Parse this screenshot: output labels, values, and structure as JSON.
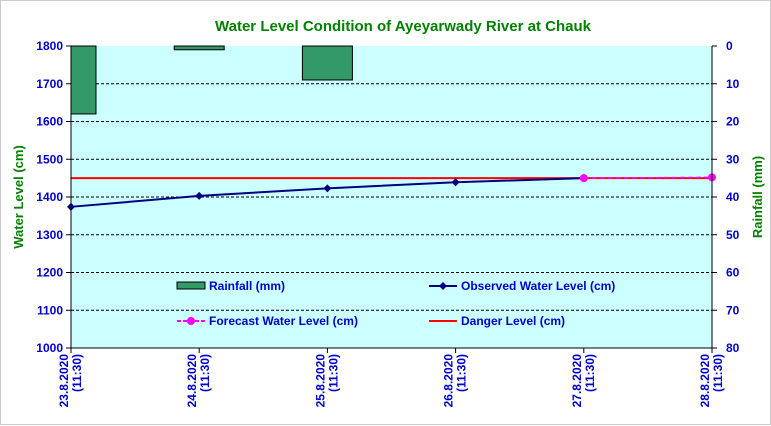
{
  "chart_data": {
    "type": "bar+line",
    "title": "Water Level Condition of Ayeyarwady River at Chauk",
    "ylabel": "Water Level (cm)",
    "y2label": "Rainfall (mm)",
    "ylim": [
      1000,
      1800
    ],
    "y2lim": [
      0,
      80
    ],
    "y2_inverted": true,
    "yticks": [
      1000,
      1100,
      1200,
      1300,
      1400,
      1500,
      1600,
      1700,
      1800
    ],
    "y2ticks": [
      0,
      10,
      20,
      30,
      40,
      50,
      60,
      70,
      80
    ],
    "categories": [
      "23.8.2020 (11:30)",
      "24.8.2020 (11:30)",
      "25.8.2020 (11:30)",
      "26.8.2020 (11:30)",
      "27.8.2020 (11:30)",
      "28.8.2020 (11:30)"
    ],
    "grid": true,
    "series": [
      {
        "name": "Rainfall (mm)",
        "type": "bar",
        "axis": "right",
        "color": "#339966",
        "values": [
          18,
          1,
          9,
          null,
          null,
          null
        ]
      },
      {
        "name": "Observed Water Level (cm)",
        "type": "line",
        "color": "#000080",
        "marker": "diamond",
        "values": [
          1374,
          1403,
          1423,
          1439,
          1450,
          null
        ]
      },
      {
        "name": "Forecast Water Level (cm)",
        "type": "line",
        "dashed": true,
        "color": "#ff00ff",
        "marker": "circle",
        "values": [
          null,
          null,
          null,
          null,
          1450,
          1452
        ]
      },
      {
        "name": "Danger Level (cm)",
        "type": "line",
        "color": "#ff0000",
        "values": [
          1450,
          1450,
          1450,
          1450,
          1450,
          1450
        ]
      }
    ],
    "colors": {
      "plot_bg": "#ccffff",
      "title": "#008000",
      "ticks": "#0000cc"
    }
  }
}
